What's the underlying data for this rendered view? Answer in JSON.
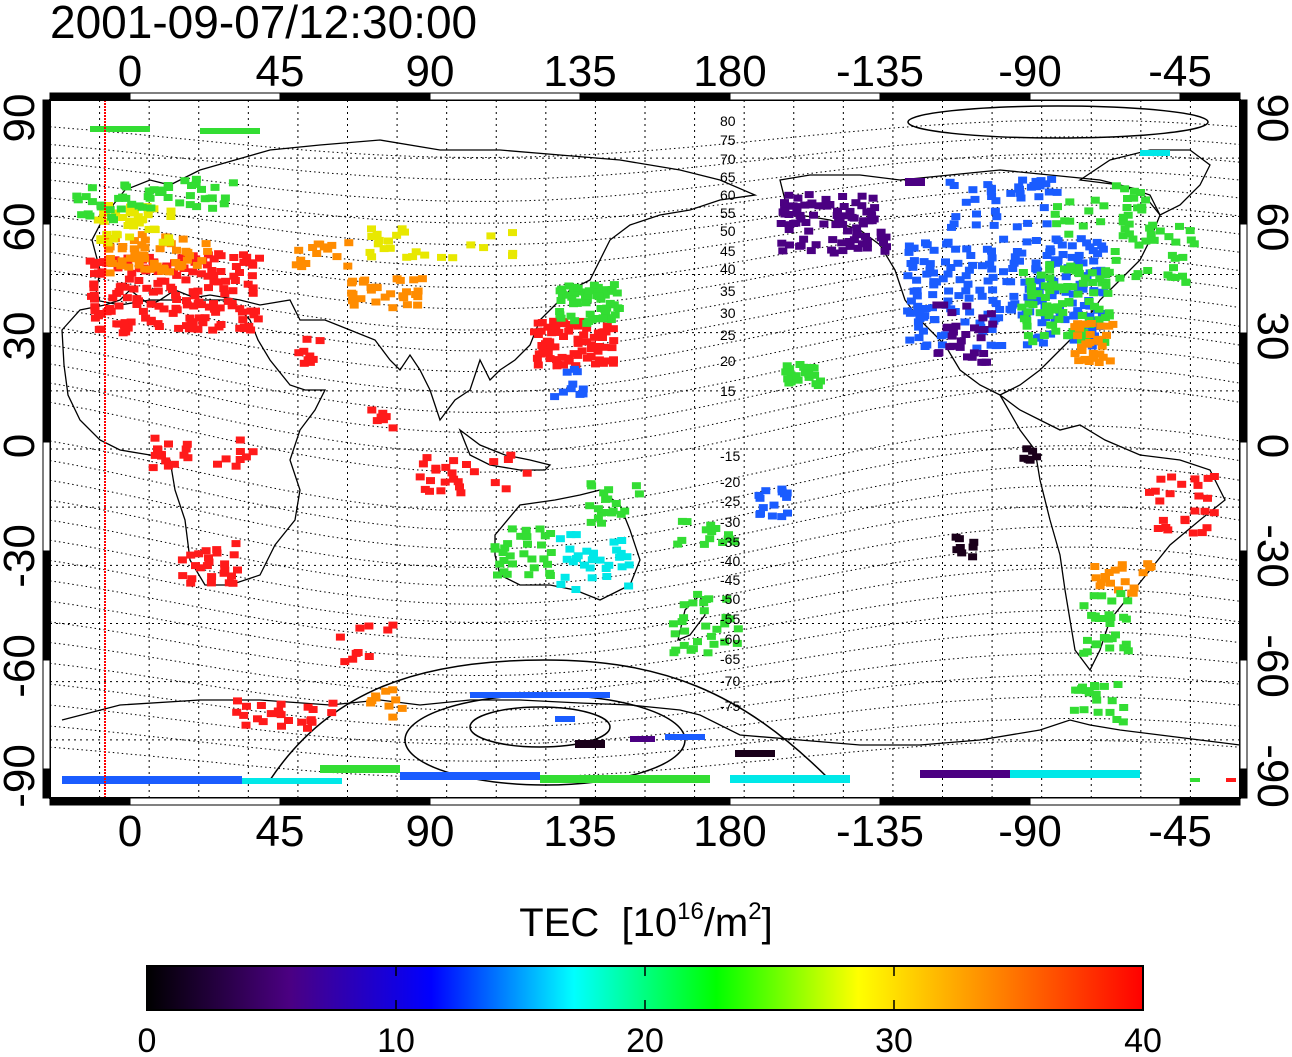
{
  "title": "2001-09-07/12:30:00",
  "top_axis": {
    "ticks": [
      "0",
      "45",
      "90",
      "135",
      "180",
      "-135",
      "-90",
      "-45"
    ]
  },
  "bottom_axis": {
    "ticks": [
      "0",
      "45",
      "90",
      "135",
      "180",
      "-135",
      "-90",
      "-45"
    ]
  },
  "left_axis": {
    "ticks": [
      "90",
      "60",
      "30",
      "0",
      "-30",
      "-60",
      "-90"
    ]
  },
  "right_axis": {
    "ticks": [
      "90",
      "60",
      "30",
      "0",
      "-30",
      "-60",
      "-90"
    ]
  },
  "contour_labels": [
    "80",
    "75",
    "70",
    "65",
    "60",
    "55",
    "50",
    "45",
    "40",
    "35",
    "30",
    "25",
    "20",
    "15",
    "-15",
    "-20",
    "-25",
    "-30",
    "-35",
    "-40",
    "-45",
    "-50",
    "-55",
    "-60",
    "-65",
    "-70",
    "-75"
  ],
  "colorbar": {
    "label_main": "TEC",
    "label_unit_base": "[10",
    "label_unit_exp": "16",
    "label_unit_mid": "/m",
    "label_unit_exp2": "2",
    "label_unit_end": "]",
    "ticks": [
      "0",
      "10",
      "20",
      "30",
      "40"
    ],
    "stops": [
      "#000000",
      "#4b0082",
      "#0000ff",
      "#00ffff",
      "#00ff00",
      "#ffff00",
      "#ff8000",
      "#ff0000"
    ]
  },
  "colors": {
    "red": "#ff1a1a",
    "orange": "#ff8c00",
    "yellow": "#e8e800",
    "green": "#33dd33",
    "cyan": "#00e8e8",
    "blue": "#1a5cff",
    "purple": "#4b0082",
    "dark": "#1a001a",
    "noon_line": "#ff0000"
  },
  "chart_data": {
    "type": "heatmap",
    "title": "2001-09-07/12:30:00",
    "xlabel": "",
    "ylabel": "",
    "colorbar_label": "TEC [10^16/m^2]",
    "colorbar_range": [
      0,
      40
    ],
    "x_ticks": [
      "0",
      "45",
      "90",
      "135",
      "180",
      "-135",
      "-90",
      "-45"
    ],
    "y_ticks": [
      "90",
      "60",
      "30",
      "0",
      "-30",
      "-60",
      "-90"
    ],
    "ylim": [
      -90,
      90
    ],
    "regions": [
      {
        "lon": [
          -10,
          30
        ],
        "lat": [
          35,
          55
        ],
        "tec": 38
      },
      {
        "lon": [
          0,
          20
        ],
        "lat": [
          55,
          70
        ],
        "tec": 30
      },
      {
        "lon": [
          120,
          145
        ],
        "lat": [
          25,
          35
        ],
        "tec": 38
      },
      {
        "lon": [
          130,
          145
        ],
        "lat": [
          35,
          50
        ],
        "tec": 24
      },
      {
        "lon": [
          -125,
          -70
        ],
        "lat": [
          28,
          50
        ],
        "tec": 14
      },
      {
        "lon": [
          -160,
          -130
        ],
        "lat": [
          50,
          68
        ],
        "tec": 7
      },
      {
        "lon": [
          -60,
          -40
        ],
        "lat": [
          -30,
          -10
        ],
        "tec": 38
      },
      {
        "lon": [
          -70,
          -55
        ],
        "lat": [
          -45,
          -20
        ],
        "tec": 30
      },
      {
        "lon": [
          115,
          150
        ],
        "lat": [
          -40,
          -20
        ],
        "tec": 20
      },
      {
        "lon": [
          165,
          180
        ],
        "lat": [
          -50,
          -35
        ],
        "tec": 20
      },
      {
        "lon": [
          -20,
          20
        ],
        "lat": [
          -90,
          -86
        ],
        "tec": 11
      },
      {
        "lon": [
          60,
          160
        ],
        "lat": [
          -90,
          -86
        ],
        "tec": 20
      }
    ]
  }
}
